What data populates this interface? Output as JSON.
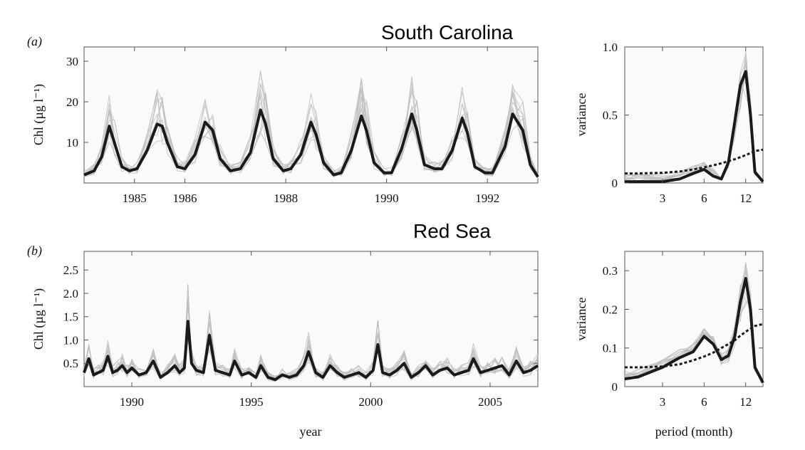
{
  "colors": {
    "mean": "#1a1a1a",
    "ensemble": "#bdbdbd",
    "background": "#fafafa",
    "axis": "#555555"
  },
  "panels": [
    {
      "label": "(a)",
      "title": "South Carolina",
      "time_series": {
        "ylabel": "Chl (µg l⁻¹)",
        "xlabel": "",
        "xlim": [
          1984.0,
          1993.0
        ],
        "ylim": [
          0,
          33.5
        ],
        "xticks": [
          1985,
          1986,
          1988,
          1990,
          1992
        ],
        "xtick_labels": [
          "1985",
          "1986",
          "1988",
          "1990",
          "1992"
        ],
        "yticks": [
          10,
          20,
          30
        ],
        "ytick_labels": [
          "10",
          "20",
          "30"
        ]
      },
      "spectrum": {
        "ylabel": "variance",
        "xlabel": "",
        "xticks": [
          3,
          6,
          12
        ],
        "xtick_labels": [
          "3",
          "6",
          "12"
        ],
        "yticks": [
          0,
          0.5,
          1.0
        ],
        "ytick_labels": [
          "0",
          "0.5",
          "1.0"
        ],
        "ylim": [
          0,
          1.0
        ]
      }
    },
    {
      "label": "(b)",
      "title": "Red Sea",
      "time_series": {
        "ylabel": "Chl (µg l⁻¹)",
        "xlabel": "year",
        "xlim": [
          1988.0,
          2007.0
        ],
        "ylim": [
          0,
          2.9
        ],
        "xticks": [
          1990,
          1995,
          2000,
          2005
        ],
        "xtick_labels": [
          "1990",
          "1995",
          "2000",
          "2005"
        ],
        "yticks": [
          0.5,
          1.0,
          1.5,
          2.0,
          2.5
        ],
        "ytick_labels": [
          "0.5",
          "1.0",
          "1.5",
          "2.0",
          "2.5"
        ]
      },
      "spectrum": {
        "ylabel": "variance",
        "xlabel": "period (month)",
        "xticks": [
          3,
          6,
          12
        ],
        "xtick_labels": [
          "3",
          "6",
          "12"
        ],
        "yticks": [
          0,
          0.1,
          0.2,
          0.3
        ],
        "ytick_labels": [
          "0",
          "0.1",
          "0.2",
          "0.3"
        ],
        "ylim": [
          0,
          0.35
        ]
      }
    }
  ],
  "chart_data": [
    {
      "type": "line",
      "panel": "(a) time series",
      "title": "South Carolina",
      "ylabel": "Chl (µg l⁻¹)",
      "xlim": [
        1984.0,
        1993.0
      ],
      "ylim": [
        0,
        33.5
      ],
      "series": [
        {
          "name": "",
          "role": "mean",
          "x": [
            1984.0,
            1984.2,
            1984.35,
            1984.5,
            1984.6,
            1984.75,
            1984.9,
            1985.05,
            1985.25,
            1985.45,
            1985.55,
            1985.65,
            1985.85,
            1986.0,
            1986.2,
            1986.4,
            1986.55,
            1986.7,
            1986.9,
            1987.1,
            1987.3,
            1987.5,
            1987.6,
            1987.75,
            1987.95,
            1988.1,
            1988.3,
            1988.5,
            1988.6,
            1988.75,
            1988.95,
            1989.1,
            1989.3,
            1989.5,
            1989.6,
            1989.75,
            1989.95,
            1990.1,
            1990.3,
            1990.5,
            1990.6,
            1990.75,
            1990.95,
            1991.1,
            1991.3,
            1991.5,
            1991.6,
            1991.75,
            1991.95,
            1992.1,
            1992.35,
            1992.5,
            1992.7,
            1992.85,
            1993.0
          ],
          "y": [
            2.0,
            3.0,
            6.5,
            14.0,
            10.0,
            4.0,
            3.0,
            3.5,
            8.0,
            14.5,
            14.0,
            10.0,
            4.0,
            3.5,
            7.0,
            15.0,
            13.0,
            6.0,
            3.0,
            3.5,
            7.5,
            18.0,
            14.5,
            6.0,
            3.0,
            3.5,
            7.0,
            15.0,
            12.0,
            5.0,
            2.0,
            2.5,
            8.0,
            16.5,
            13.0,
            5.0,
            2.5,
            2.5,
            8.5,
            17.0,
            13.0,
            4.5,
            3.5,
            3.5,
            8.0,
            16.0,
            12.5,
            4.0,
            2.5,
            2.5,
            9.0,
            17.0,
            13.0,
            4.5,
            1.5
          ]
        }
      ]
    },
    {
      "type": "line",
      "panel": "(a) spectrum",
      "ylabel": "variance",
      "xticks": [
        3,
        6,
        12
      ],
      "ylim": [
        0,
        1.0
      ],
      "series": [
        {
          "name": "",
          "role": "mean",
          "x": [
            1.6,
            2,
            3,
            4,
            5,
            6,
            7,
            8,
            9,
            10,
            11,
            12,
            13,
            14,
            16
          ],
          "y": [
            0.01,
            0.01,
            0.01,
            0.03,
            0.07,
            0.1,
            0.05,
            0.03,
            0.15,
            0.45,
            0.72,
            0.82,
            0.5,
            0.08,
            0.01
          ]
        },
        {
          "name": "",
          "role": "dashed",
          "x": [
            1.6,
            2,
            3,
            4,
            5,
            6,
            7,
            8,
            9,
            10,
            11,
            12,
            13,
            14,
            16
          ],
          "y": [
            0.07,
            0.07,
            0.075,
            0.085,
            0.1,
            0.115,
            0.13,
            0.145,
            0.16,
            0.175,
            0.19,
            0.205,
            0.22,
            0.235,
            0.245
          ]
        }
      ]
    },
    {
      "type": "line",
      "panel": "(b) time series",
      "title": "Red Sea",
      "ylabel": "Chl (µg l⁻¹)",
      "xlabel": "year",
      "xlim": [
        1988.0,
        2007.0
      ],
      "ylim": [
        0,
        2.9
      ],
      "series": [
        {
          "name": "",
          "role": "mean",
          "x": [
            1988.0,
            1988.2,
            1988.4,
            1988.6,
            1988.8,
            1989.0,
            1989.2,
            1989.4,
            1989.6,
            1989.8,
            1990.0,
            1990.3,
            1990.6,
            1990.9,
            1991.2,
            1991.5,
            1991.8,
            1992.0,
            1992.2,
            1992.35,
            1992.5,
            1992.7,
            1993.0,
            1993.25,
            1993.5,
            1993.8,
            1994.1,
            1994.3,
            1994.6,
            1994.9,
            1995.2,
            1995.4,
            1995.7,
            1996.0,
            1996.3,
            1996.6,
            1996.9,
            1997.2,
            1997.4,
            1997.7,
            1998.0,
            1998.3,
            1998.6,
            1998.9,
            1999.2,
            1999.5,
            1999.8,
            2000.1,
            2000.3,
            2000.5,
            2000.8,
            2001.1,
            2001.4,
            2001.7,
            2002.0,
            2002.3,
            2002.6,
            2002.9,
            2003.2,
            2003.5,
            2003.8,
            2004.1,
            2004.3,
            2004.6,
            2004.9,
            2005.2,
            2005.5,
            2005.8,
            2006.1,
            2006.4,
            2006.7,
            2007.0
          ],
          "y": [
            0.3,
            0.6,
            0.25,
            0.3,
            0.35,
            0.65,
            0.3,
            0.35,
            0.45,
            0.3,
            0.4,
            0.25,
            0.3,
            0.55,
            0.2,
            0.3,
            0.45,
            0.3,
            0.4,
            1.4,
            0.5,
            0.35,
            0.3,
            1.1,
            0.35,
            0.3,
            0.25,
            0.55,
            0.25,
            0.3,
            0.2,
            0.45,
            0.2,
            0.15,
            0.25,
            0.2,
            0.25,
            0.45,
            0.75,
            0.3,
            0.2,
            0.45,
            0.3,
            0.2,
            0.25,
            0.3,
            0.2,
            0.35,
            0.9,
            0.3,
            0.25,
            0.35,
            0.5,
            0.2,
            0.3,
            0.45,
            0.25,
            0.35,
            0.4,
            0.25,
            0.3,
            0.35,
            0.6,
            0.3,
            0.35,
            0.4,
            0.45,
            0.25,
            0.55,
            0.3,
            0.35,
            0.45
          ]
        }
      ]
    },
    {
      "type": "line",
      "panel": "(b) spectrum",
      "ylabel": "variance",
      "xlabel": "period (month)",
      "xticks": [
        3,
        6,
        12
      ],
      "ylim": [
        0,
        0.35
      ],
      "series": [
        {
          "name": "",
          "role": "mean",
          "x": [
            1.6,
            2,
            3,
            4,
            5,
            6,
            7,
            8,
            9,
            10,
            11,
            12,
            13,
            14,
            16
          ],
          "y": [
            0.02,
            0.025,
            0.05,
            0.075,
            0.09,
            0.13,
            0.11,
            0.07,
            0.08,
            0.13,
            0.22,
            0.28,
            0.2,
            0.05,
            0.01
          ]
        },
        {
          "name": "",
          "role": "dashed",
          "x": [
            1.6,
            2,
            3,
            4,
            5,
            6,
            7,
            8,
            9,
            10,
            11,
            12,
            13,
            14,
            16
          ],
          "y": [
            0.05,
            0.05,
            0.052,
            0.058,
            0.068,
            0.078,
            0.088,
            0.1,
            0.11,
            0.12,
            0.132,
            0.142,
            0.15,
            0.157,
            0.162
          ]
        }
      ]
    }
  ]
}
